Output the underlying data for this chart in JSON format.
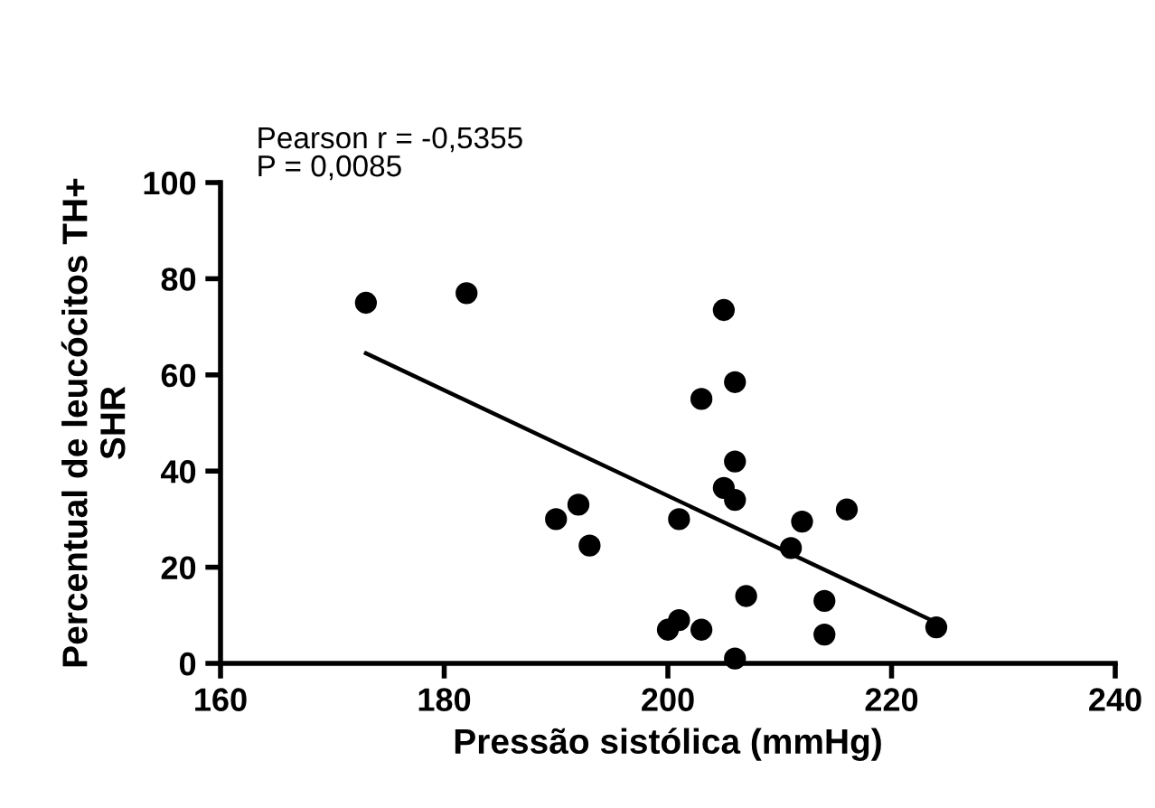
{
  "chart_data": {
    "type": "scatter",
    "xlabel": "Pressão sistólica (mmHg)",
    "ylabel": "Percentual de leucócitos TH+\nSHR",
    "annotations": [
      "Pearson r = -0,5355",
      "P = 0,0085"
    ],
    "xlim": [
      160,
      240
    ],
    "xticks": [
      160,
      180,
      200,
      220,
      240
    ],
    "ylim": [
      0,
      100
    ],
    "yticks": [
      0,
      20,
      40,
      60,
      80,
      100
    ],
    "grid": false,
    "legend": false,
    "marker": "circle",
    "series": [
      {
        "color": "#000000",
        "x": [
          173,
          182,
          190,
          192,
          193,
          200,
          201,
          201,
          203,
          203,
          205,
          205,
          206,
          206,
          206,
          206,
          207,
          211,
          212,
          214,
          214,
          216,
          224
        ],
        "values": [
          75,
          77,
          30,
          33,
          24.5,
          7,
          9,
          30,
          7,
          55,
          73.5,
          36.5,
          58.5,
          42,
          34,
          1,
          14,
          24,
          29.5,
          13,
          6,
          32,
          7.5
        ]
      },
      {
        "type": "line",
        "color": "#000000",
        "x": [
          173,
          224
        ],
        "values": [
          64.5,
          8.5
        ],
        "marker": "none",
        "line_style": "solid"
      }
    ]
  }
}
